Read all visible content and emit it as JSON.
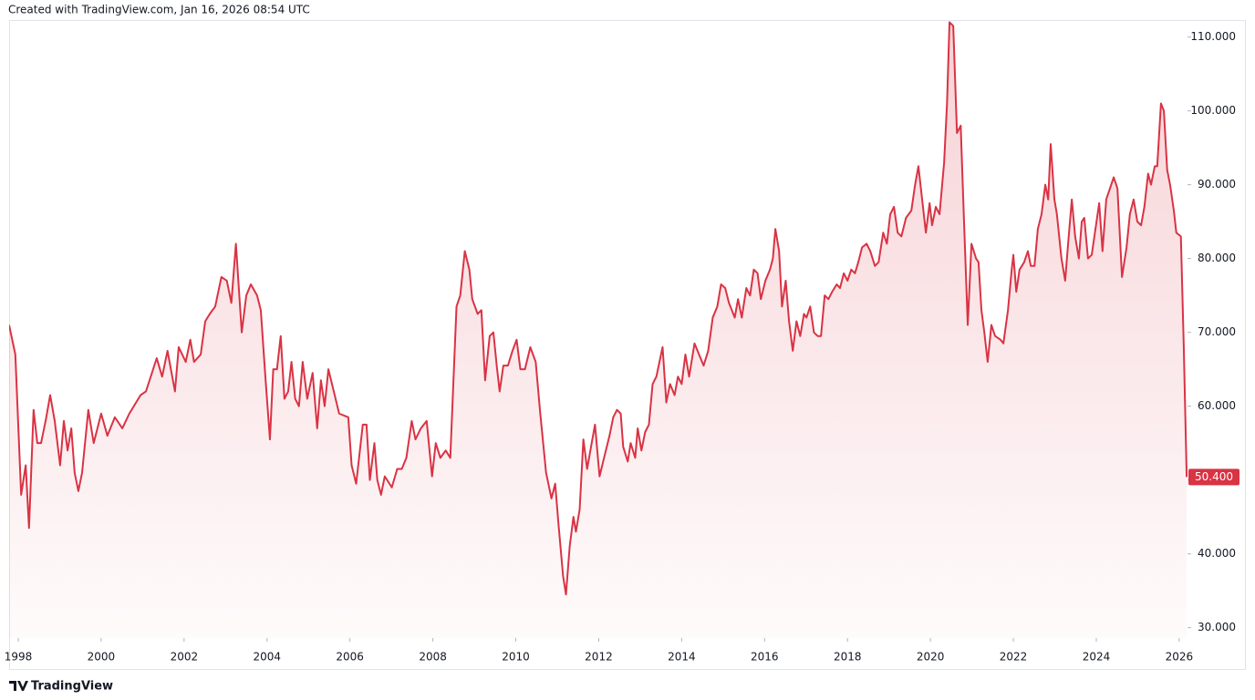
{
  "header": {
    "watermark": "Created with TradingView.com, Jan 16, 2026 08:54 UTC"
  },
  "footer": {
    "brand": "TradingView"
  },
  "chart_data": {
    "type": "area",
    "color": "#d93344",
    "grid": false,
    "xlim": [
      1997.78,
      2026.2
    ],
    "ylim": [
      28.6,
      112.3
    ],
    "xticks": [
      1998,
      2000,
      2002,
      2004,
      2006,
      2008,
      2010,
      2012,
      2014,
      2016,
      2018,
      2020,
      2022,
      2024,
      2026
    ],
    "yticks": [
      {
        "value": 30,
        "label": "30.000"
      },
      {
        "value": 40,
        "label": "40.000"
      },
      {
        "value": 50,
        "label": "50.000"
      },
      {
        "value": 60,
        "label": "60.000"
      },
      {
        "value": 70,
        "label": "70.000"
      },
      {
        "value": 80,
        "label": "80.000"
      },
      {
        "value": 90,
        "label": "90.000"
      },
      {
        "value": 100,
        "label": "100.000"
      },
      {
        "value": 110,
        "label": "110.000"
      }
    ],
    "price_label": {
      "value": 50.4,
      "label": "50.400"
    },
    "x": [
      1997.78,
      1997.93,
      1998.07,
      1998.18,
      1998.26,
      1998.37,
      1998.46,
      1998.55,
      1998.66,
      1998.77,
      1998.88,
      1999.01,
      1999.1,
      1999.19,
      1999.28,
      1999.36,
      1999.45,
      1999.54,
      1999.69,
      1999.82,
      2000.0,
      2000.15,
      2000.33,
      2000.51,
      2000.68,
      2000.95,
      2001.08,
      2001.34,
      2001.47,
      2001.6,
      2001.78,
      2001.87,
      2002.04,
      2002.15,
      2002.24,
      2002.4,
      2002.51,
      2002.62,
      2002.75,
      2002.9,
      2003.03,
      2003.14,
      2003.25,
      2003.39,
      2003.5,
      2003.61,
      2003.76,
      2003.85,
      2003.96,
      2004.07,
      2004.15,
      2004.24,
      2004.33,
      2004.42,
      2004.51,
      2004.59,
      2004.68,
      2004.77,
      2004.86,
      2004.97,
      2005.1,
      2005.21,
      2005.3,
      2005.39,
      2005.48,
      2005.61,
      2005.74,
      2005.96,
      2006.04,
      2006.15,
      2006.31,
      2006.4,
      2006.48,
      2006.59,
      2006.66,
      2006.75,
      2006.84,
      2007.01,
      2007.14,
      2007.25,
      2007.36,
      2007.49,
      2007.58,
      2007.71,
      2007.85,
      2007.98,
      2008.07,
      2008.18,
      2008.31,
      2008.42,
      2008.57,
      2008.66,
      2008.77,
      2008.88,
      2008.95,
      2009.08,
      2009.17,
      2009.26,
      2009.37,
      2009.46,
      2009.54,
      2009.61,
      2009.7,
      2009.81,
      2009.92,
      2010.02,
      2010.11,
      2010.22,
      2010.35,
      2010.48,
      2010.59,
      2010.73,
      2010.86,
      2010.95,
      2011.03,
      2011.14,
      2011.21,
      2011.3,
      2011.39,
      2011.45,
      2011.54,
      2011.63,
      2011.72,
      2011.83,
      2011.91,
      2012.02,
      2012.15,
      2012.26,
      2012.35,
      2012.44,
      2012.53,
      2012.59,
      2012.7,
      2012.77,
      2012.88,
      2012.94,
      2013.03,
      2013.12,
      2013.21,
      2013.3,
      2013.39,
      2013.54,
      2013.63,
      2013.72,
      2013.83,
      2013.91,
      2014.0,
      2014.09,
      2014.18,
      2014.31,
      2014.42,
      2014.53,
      2014.64,
      2014.75,
      2014.86,
      2014.95,
      2015.05,
      2015.14,
      2015.28,
      2015.36,
      2015.45,
      2015.56,
      2015.65,
      2015.74,
      2015.83,
      2015.91,
      2016.02,
      2016.13,
      2016.2,
      2016.26,
      2016.35,
      2016.42,
      2016.51,
      2016.59,
      2016.68,
      2016.77,
      2016.86,
      2016.95,
      2017.01,
      2017.1,
      2017.19,
      2017.28,
      2017.36,
      2017.45,
      2017.54,
      2017.63,
      2017.74,
      2017.82,
      2017.91,
      2018.0,
      2018.09,
      2018.18,
      2018.26,
      2018.35,
      2018.46,
      2018.55,
      2018.66,
      2018.75,
      2018.86,
      2018.95,
      2019.03,
      2019.12,
      2019.21,
      2019.3,
      2019.41,
      2019.54,
      2019.63,
      2019.71,
      2019.8,
      2019.89,
      2019.98,
      2020.04,
      2020.13,
      2020.22,
      2020.33,
      2020.4,
      2020.46,
      2020.55,
      2020.64,
      2020.73,
      2020.81,
      2020.9,
      2020.99,
      2021.1,
      2021.16,
      2021.23,
      2021.3,
      2021.38,
      2021.47,
      2021.56,
      2021.69,
      2021.76,
      2021.87,
      2021.96,
      2022.0,
      2022.07,
      2022.15,
      2022.26,
      2022.35,
      2022.42,
      2022.51,
      2022.59,
      2022.68,
      2022.77,
      2022.84,
      2022.9,
      2022.99,
      2023.05,
      2023.16,
      2023.25,
      2023.32,
      2023.41,
      2023.49,
      2023.58,
      2023.65,
      2023.71,
      2023.8,
      2023.89,
      2023.98,
      2024.07,
      2024.15,
      2024.24,
      2024.33,
      2024.42,
      2024.51,
      2024.62,
      2024.73,
      2024.81,
      2024.9,
      2024.99,
      2025.08,
      2025.16,
      2025.25,
      2025.32,
      2025.41,
      2025.47,
      2025.56,
      2025.63,
      2025.71,
      2025.78,
      2025.87,
      2025.93,
      2026.04,
      2026.11,
      2026.18
    ],
    "values": [
      71,
      67,
      48,
      52,
      43.5,
      59.5,
      55,
      55,
      58,
      61.5,
      58,
      52,
      58,
      54,
      57,
      51,
      48.5,
      51,
      59.5,
      55,
      59,
      56,
      58.5,
      57,
      59,
      61.5,
      62,
      66.5,
      64,
      67.5,
      62,
      68,
      66,
      69,
      66,
      67,
      71.5,
      72.5,
      73.5,
      77.5,
      77,
      74,
      82,
      70,
      75,
      76.5,
      75,
      73,
      64,
      55.5,
      65,
      65,
      69.5,
      61,
      62,
      66,
      61,
      60,
      66,
      61,
      64.5,
      57,
      63.5,
      60,
      65,
      62,
      59,
      58.5,
      52,
      49.5,
      57.5,
      57.5,
      50,
      55,
      50,
      48,
      50.5,
      49,
      51.5,
      51.5,
      53,
      58,
      55.5,
      57,
      58,
      50.5,
      55,
      53,
      54,
      53,
      73.5,
      75,
      81,
      78.5,
      74.5,
      72.5,
      73,
      63.5,
      69.5,
      70,
      65.5,
      62,
      65.5,
      65.5,
      67.5,
      69,
      65,
      65,
      68,
      66,
      59,
      51,
      47.5,
      49.5,
      44,
      37,
      34.5,
      41,
      45,
      43,
      46,
      55.5,
      51.5,
      55,
      57.5,
      50.5,
      53.5,
      56,
      58.5,
      59.5,
      59,
      54.5,
      52.5,
      55,
      53,
      57,
      54,
      56.5,
      57.5,
      63,
      64,
      68,
      60.5,
      63,
      61.5,
      64,
      63,
      67,
      64,
      68.5,
      67,
      65.5,
      67.5,
      72,
      73.5,
      76.5,
      76,
      74,
      72,
      74.5,
      72,
      76,
      75,
      78.5,
      78,
      74.5,
      77,
      78.5,
      80,
      84,
      81,
      73.5,
      77,
      71.5,
      67.5,
      71.5,
      69.5,
      72.5,
      72,
      73.5,
      70,
      69.5,
      69.5,
      75,
      74.5,
      75.5,
      76.5,
      76,
      78,
      77,
      78.5,
      78,
      79.5,
      81.5,
      82,
      81,
      79,
      79.5,
      83.5,
      82,
      86,
      87,
      83.5,
      83,
      85.5,
      86.5,
      90,
      92.5,
      88,
      83.5,
      87.5,
      84.5,
      87,
      86,
      93,
      101,
      112,
      111.5,
      97,
      98,
      85,
      71,
      82,
      80,
      79.5,
      73,
      70,
      66,
      71,
      69.5,
      69,
      68.5,
      73,
      78.5,
      80.5,
      75.5,
      78.5,
      79.5,
      81,
      79,
      79,
      84,
      86,
      90,
      88,
      95.5,
      88,
      86,
      80,
      77,
      82,
      88,
      83,
      80,
      85,
      85.5,
      80,
      80.5,
      84,
      87.5,
      81,
      88,
      89.5,
      91,
      89.5,
      77.5,
      81.5,
      86,
      88,
      85,
      84.5,
      87,
      91.5,
      90,
      92.5,
      92.5,
      101,
      100,
      92,
      90,
      86.5,
      83.5,
      83,
      68,
      50.4
    ]
  }
}
